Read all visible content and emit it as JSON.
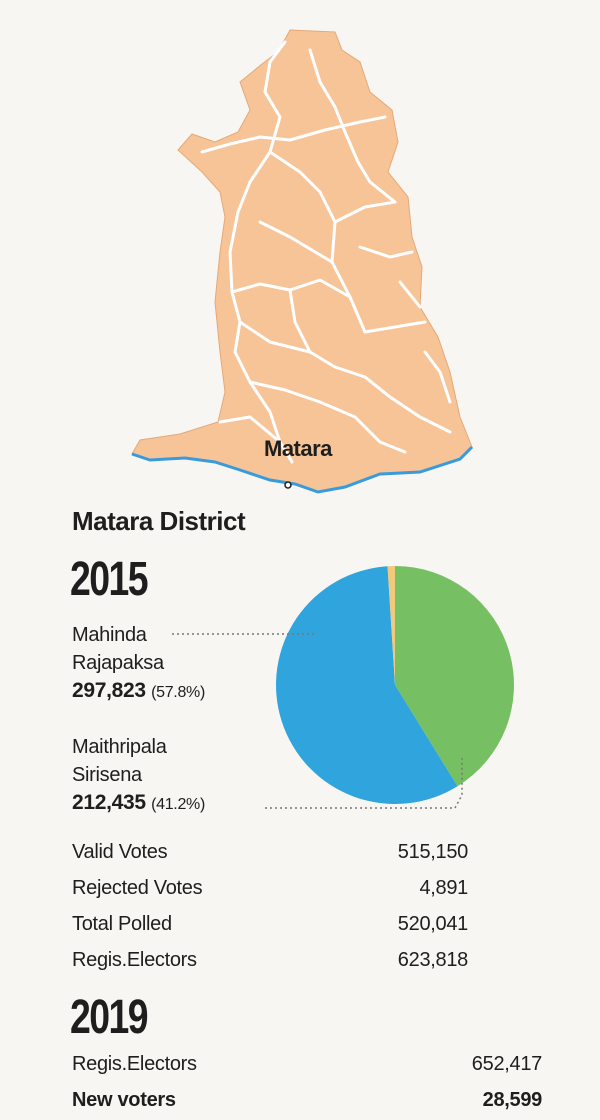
{
  "map": {
    "town_label": "Matara",
    "land_color": "#f7c497",
    "road_color": "#ffffff",
    "coast_color": "#3a9bdc"
  },
  "district_title": "Matara District",
  "election_2015": {
    "year": "2015",
    "candidates": [
      {
        "name_line1": "Mahinda",
        "name_line2": "Rajapaksa",
        "votes": "297,823",
        "pct": "(57.8%)"
      },
      {
        "name_line1": "Maithripala",
        "name_line2": "Sirisena",
        "votes": "212,435",
        "pct": "(41.2%)"
      }
    ],
    "stats": [
      {
        "label": "Valid Votes",
        "value": "515,150"
      },
      {
        "label": "Rejected Votes",
        "value": "4,891"
      },
      {
        "label": "Total Polled",
        "value": "520,041"
      },
      {
        "label": "Regis.Electors",
        "value": "623,818"
      }
    ]
  },
  "election_2019": {
    "year": "2019",
    "stats": [
      {
        "label": "Regis.Electors",
        "value": "652,417"
      },
      {
        "label": "New voters",
        "value": "28,599"
      }
    ]
  },
  "chart_data": {
    "type": "pie",
    "slices": [
      {
        "label": "Mahinda Rajapaksa",
        "value": 57.8,
        "color": "#2fa4dd"
      },
      {
        "label": "Maithripala Sirisena",
        "value": 41.2,
        "color": "#76c063"
      },
      {
        "label": "Other",
        "value": 1.0,
        "color": "#f0c97a"
      }
    ]
  }
}
